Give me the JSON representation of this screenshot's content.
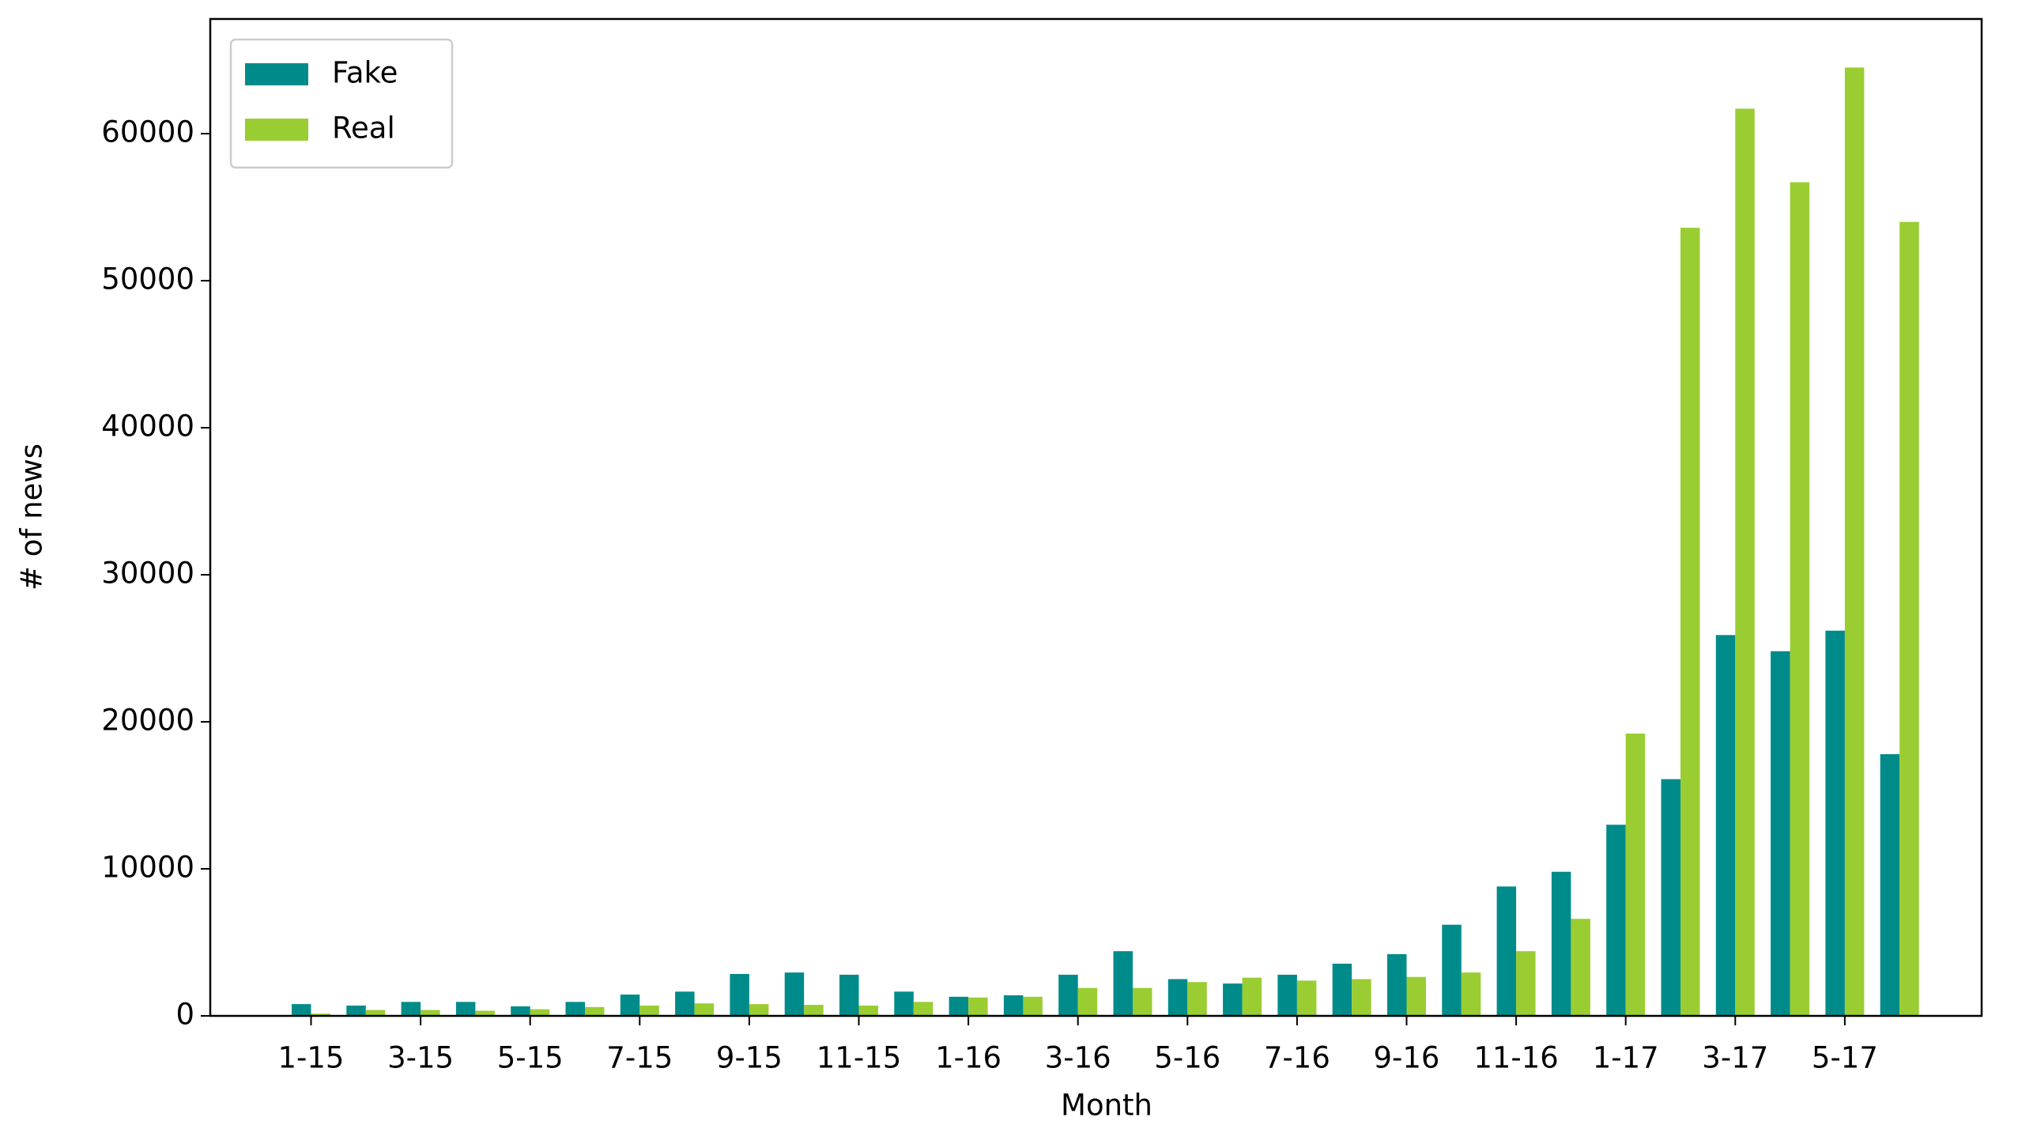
{
  "chart_data": {
    "type": "bar",
    "x_label": "Month",
    "y_label": "# of news",
    "categories": [
      "1-15",
      null,
      "3-15",
      null,
      "5-15",
      null,
      "7-15",
      null,
      "9-15",
      null,
      "11-15",
      null,
      "1-16",
      null,
      "3-16",
      null,
      "5-16",
      null,
      "7-16",
      null,
      "9-16",
      null,
      "11-16",
      null,
      "1-17",
      null,
      "3-17",
      null,
      "5-17",
      null
    ],
    "series": [
      {
        "name": "Fake",
        "color": "#008b8b",
        "values": [
          800,
          700,
          950,
          950,
          650,
          950,
          1450,
          1650,
          2850,
          2950,
          2800,
          1650,
          1300,
          1400,
          2800,
          4400,
          2500,
          2200,
          2800,
          3550,
          4200,
          6200,
          8800,
          9800,
          13000,
          16100,
          25900,
          24800,
          26200,
          17800
        ]
      },
      {
        "name": "Real",
        "color": "#9acd32",
        "values": [
          150,
          400,
          400,
          350,
          450,
          600,
          700,
          850,
          800,
          750,
          700,
          950,
          1250,
          1300,
          1900,
          1900,
          2300,
          2600,
          2400,
          2500,
          2650,
          2950,
          4400,
          6600,
          19200,
          53600,
          61700,
          56700,
          64500,
          54000
        ]
      }
    ],
    "ylim": [
      0,
      67800
    ],
    "yticks": [
      0,
      10000,
      20000,
      30000,
      40000,
      50000,
      60000
    ],
    "legend": "upper left",
    "grid": false
  }
}
